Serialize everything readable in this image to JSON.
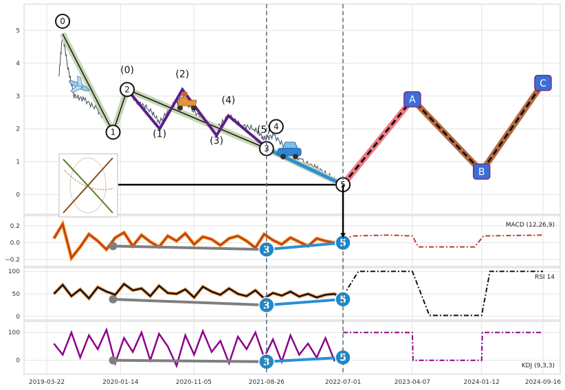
{
  "chart_data": {
    "type": "line",
    "x_ticks": [
      "2019-03-22",
      "2020-01-14",
      "2020-11-05",
      "2021-08-26",
      "2022-07-01",
      "2023-04-07",
      "2024-01-12",
      "2024-09-16"
    ],
    "panels": [
      {
        "id": "price",
        "y_ticks": [
          0,
          1,
          2,
          3,
          4,
          5
        ],
        "ylim": [
          -0.6,
          5.8
        ],
        "series": [
          {
            "type": "price",
            "color": "#3d4a5a",
            "points": [
              [
                "2019-05-10",
                3.6
              ],
              [
                "2019-05-25",
                4.9
              ],
              [
                "2019-06-15",
                3.9
              ],
              [
                "2019-07-10",
                3.0
              ],
              [
                "2019-08-20",
                2.9
              ],
              [
                "2019-10-10",
                2.6
              ],
              [
                "2019-11-20",
                2.2
              ],
              [
                "2019-12-15",
                1.9
              ],
              [
                "2020-01-10",
                2.6
              ],
              [
                "2020-02-10",
                3.2
              ],
              [
                "2020-03-25",
                2.8
              ],
              [
                "2020-05-10",
                2.6
              ],
              [
                "2020-06-20",
                2.2
              ],
              [
                "2020-08-10",
                2.7
              ],
              [
                "2020-09-20",
                3.0
              ],
              [
                "2020-10-25",
                2.6
              ],
              [
                "2020-12-15",
                2.3
              ],
              [
                "2021-02-05",
                2.0
              ],
              [
                "2021-03-25",
                2.4
              ],
              [
                "2021-05-20",
                2.1
              ],
              [
                "2021-07-10",
                2.0
              ],
              [
                "2021-08-15",
                1.7
              ],
              [
                "2021-09-25",
                1.8
              ],
              [
                "2021-11-15",
                1.4
              ],
              [
                "2022-01-20",
                1.0
              ],
              [
                "2022-03-20",
                0.8
              ],
              [
                "2022-05-20",
                0.5
              ],
              [
                "2022-06-25",
                0.3
              ]
            ]
          }
        ],
        "waves": [
          {
            "points": [
              [
                "2019-05-25",
                4.9
              ],
              [
                "2019-12-15",
                1.9
              ],
              [
                "2020-02-10",
                3.2
              ],
              [
                "2021-08-26",
                1.4
              ],
              [
                "2022-07-01",
                0.3
              ]
            ],
            "color": "#c8d6b4",
            "labels": [
              "0",
              "1",
              "2",
              "3",
              "5"
            ]
          },
          {
            "points": [
              [
                "2020-02-10",
                3.2
              ],
              [
                "2020-06-20",
                2.0
              ],
              [
                "2020-09-20",
                3.2
              ],
              [
                "2021-02-05",
                1.8
              ],
              [
                "2021-03-25",
                2.4
              ],
              [
                "2021-08-15",
                1.5
              ]
            ],
            "color": "#5b1f8a",
            "labels": [
              "(0)",
              "(1)",
              "(2)",
              "(3)",
              "(4)",
              "(5)"
            ]
          },
          {
            "points": [
              [
                "2021-08-26",
                1.4
              ],
              [
                "2022-07-01",
                0.3
              ]
            ],
            "color": "#2a8fd6",
            "labels": [
              "4"
            ]
          },
          {
            "points": [
              [
                "2022-07-01",
                0.3
              ],
              [
                "2023-04-07",
                2.9
              ]
            ],
            "color": "#f07a85",
            "labels": []
          },
          {
            "points": [
              [
                "2023-04-07",
                2.9
              ],
              [
                "2024-01-12",
                0.7
              ],
              [
                "2024-09-16",
                3.4
              ]
            ],
            "color": "#b86a40",
            "labels": [
              "A",
              "B",
              "C"
            ]
          }
        ],
        "target_level": 0.3,
        "icons": [
          "airplane",
          "scooter",
          "car",
          "target-map"
        ]
      },
      {
        "id": "macd",
        "label": "MACD (12,26,9)",
        "y_ticks": [
          -0.2,
          0.0,
          0.2
        ],
        "y_tick_labels": [
          "−0.2",
          "0.0",
          "0.2"
        ],
        "ylim": [
          -0.28,
          0.32
        ],
        "series": [
          {
            "type": "main",
            "color": "#c0392b",
            "values": [
              0.05,
              0.22,
              -0.18,
              -0.05,
              0.1,
              0.02,
              -0.08,
              0.06,
              0.12,
              -0.04,
              0.09,
              0.01,
              -0.05,
              0.08,
              0.02,
              0.11,
              -0.02,
              0.07,
              0.04,
              -0.03,
              0.05,
              0.08,
              0.02,
              -0.06,
              0.1,
              0.03,
              -0.02,
              0.06,
              0.01,
              -0.04,
              0.05,
              0.02,
              0.0,
              0.04
            ]
          },
          {
            "type": "forecast",
            "color": "#c0392b",
            "points": [
              [
                "2022-07-01",
                0.05
              ],
              [
                "2022-08-15",
                0.08
              ],
              [
                "2023-01-01",
                0.09
              ],
              [
                "2023-04-07",
                0.08
              ],
              [
                "2023-05-01",
                -0.05
              ],
              [
                "2023-12-15",
                -0.05
              ],
              [
                "2024-01-20",
                0.08
              ],
              [
                "2024-09-16",
                0.09
              ]
            ]
          }
        ],
        "divergence": {
          "points": [
            [
              "2019-12-15",
              -0.04
            ],
            [
              "2021-08-26",
              -0.08
            ],
            [
              "2022-07-01",
              0.0
            ]
          ],
          "labels": [
            "3",
            "5"
          ]
        }
      },
      {
        "id": "rsi",
        "label": "RSI 14",
        "y_ticks": [
          0,
          50,
          100
        ],
        "ylim": [
          -8,
          108
        ],
        "series": [
          {
            "type": "main",
            "color": "#111111",
            "values": [
              50,
              70,
              45,
              60,
              40,
              65,
              55,
              48,
              72,
              58,
              62,
              45,
              68,
              52,
              50,
              60,
              42,
              66,
              55,
              48,
              62,
              50,
              45,
              58,
              40,
              52,
              46,
              55,
              44,
              50,
              42,
              48,
              50,
              40
            ]
          },
          {
            "type": "forecast",
            "color": "#111111",
            "points": [
              [
                "2022-07-01",
                45
              ],
              [
                "2022-09-01",
                100
              ],
              [
                "2023-04-07",
                100
              ],
              [
                "2023-06-15",
                2
              ],
              [
                "2024-01-12",
                2
              ],
              [
                "2024-02-15",
                100
              ],
              [
                "2024-09-16",
                100
              ]
            ]
          }
        ],
        "divergence": {
          "points": [
            [
              "2019-12-15",
              38
            ],
            [
              "2021-08-26",
              25
            ],
            [
              "2022-07-01",
              38
            ]
          ],
          "labels": [
            "3",
            "5"
          ]
        }
      },
      {
        "id": "kdj",
        "label": "KDJ (9,3,3)",
        "y_ticks": [
          0,
          100
        ],
        "ylim": [
          -50,
          140
        ],
        "series": [
          {
            "type": "main",
            "color": "#8b008b",
            "values": [
              60,
              20,
              100,
              10,
              90,
              40,
              110,
              -10,
              80,
              30,
              100,
              0,
              95,
              50,
              -20,
              90,
              20,
              105,
              30,
              70,
              -10,
              85,
              40,
              100,
              10,
              75,
              -5,
              90,
              20,
              60,
              10,
              80,
              0,
              40
            ]
          },
          {
            "type": "forecast",
            "color": "#8b008b",
            "points": [
              [
                "2022-07-01",
                100
              ],
              [
                "2023-04-07",
                100
              ],
              [
                "2023-04-10",
                0
              ],
              [
                "2024-01-12",
                0
              ],
              [
                "2024-01-15",
                100
              ],
              [
                "2024-09-16",
                100
              ]
            ]
          }
        ],
        "divergence": {
          "points": [
            [
              "2019-12-15",
              0
            ],
            [
              "2021-08-26",
              -5
            ],
            [
              "2022-07-01",
              10
            ]
          ],
          "labels": [
            "3",
            "5"
          ]
        }
      }
    ],
    "grid": true
  }
}
